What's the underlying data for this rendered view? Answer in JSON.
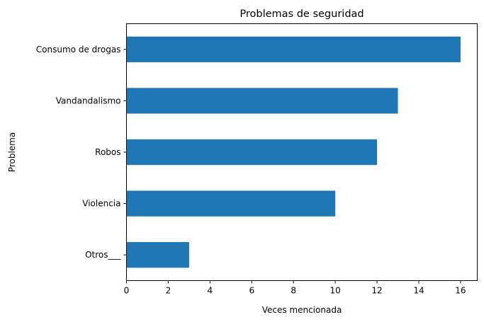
{
  "chart_data": {
    "type": "bar",
    "orientation": "horizontal",
    "title": "Problemas de seguridad",
    "xlabel": "Veces mencionada",
    "ylabel": "Problema",
    "categories": [
      "Consumo de drogas",
      "Vandandalismo",
      "Robos",
      "Violencia",
      "Otros___"
    ],
    "values": [
      16,
      13,
      12,
      10,
      3
    ],
    "xlim": [
      0,
      16.8
    ],
    "xticks": [
      0,
      2,
      4,
      6,
      8,
      10,
      12,
      14,
      16
    ],
    "bar_color": "#1f77b4",
    "grid": false,
    "legend": "none"
  }
}
